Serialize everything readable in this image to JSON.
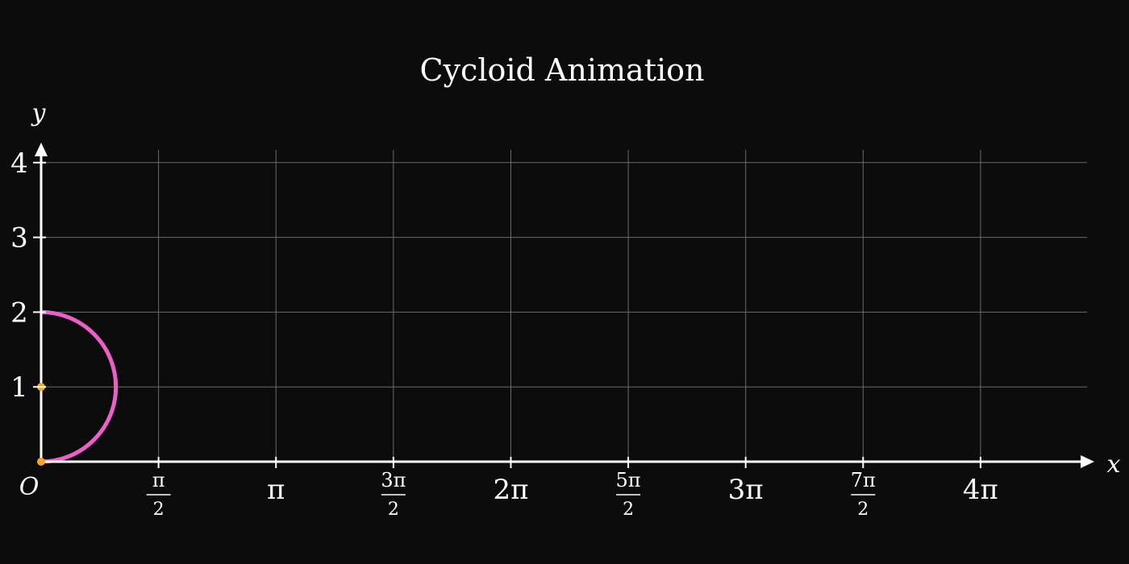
{
  "chart_data": {
    "type": "line",
    "title": "Cycloid Animation",
    "xlabel": "x",
    "ylabel": "y",
    "origin_label": "O",
    "xlim": [
      0,
      13.823
    ],
    "ylim": [
      0,
      4.2
    ],
    "x_ticks": [
      {
        "value": 1.5708,
        "num": "π",
        "den": "2"
      },
      {
        "value": 3.1416,
        "label": "π"
      },
      {
        "value": 4.7124,
        "num": "3π",
        "den": "2"
      },
      {
        "value": 6.2832,
        "label": "2π"
      },
      {
        "value": 7.854,
        "num": "5π",
        "den": "2"
      },
      {
        "value": 9.4248,
        "label": "3π"
      },
      {
        "value": 10.9956,
        "num": "7π",
        "den": "2"
      },
      {
        "value": 12.5664,
        "label": "4π"
      }
    ],
    "y_ticks": [
      {
        "value": 1,
        "label": "1"
      },
      {
        "value": 2,
        "label": "2"
      },
      {
        "value": 3,
        "label": "3"
      },
      {
        "value": 4,
        "label": "4"
      }
    ],
    "grid": true,
    "rolling_circle": {
      "center": [
        0,
        1
      ],
      "radius": 1,
      "color": "#ec5fc8",
      "visible_arc": "right-half"
    },
    "radius_segment": {
      "from": [
        0,
        0
      ],
      "to": [
        0,
        1
      ],
      "color": "#f5a623"
    },
    "center_point": {
      "x": 0,
      "y": 1,
      "color": "#f5a623"
    },
    "tracing_point": {
      "x": 0,
      "y": 0,
      "color": "#f5a623"
    },
    "colors": {
      "background": "#0c0c0c",
      "axes": "#ffffff",
      "grid": "#6a6a6a",
      "text": "#ffffff"
    }
  }
}
